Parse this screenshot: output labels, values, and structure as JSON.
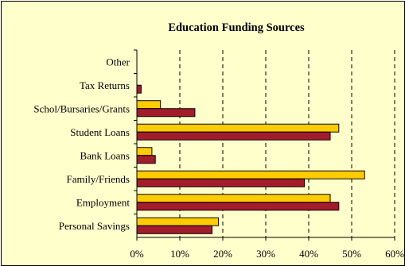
{
  "chart_data": {
    "type": "bar",
    "orientation": "horizontal",
    "title": "Education Funding Sources",
    "categories": [
      "Other",
      "Tax Returns",
      "Schol/Bursaries/Grants",
      "Student Loans",
      "Bank Loans",
      "Family/Friends",
      "Employment",
      "Personal Savings"
    ],
    "series": [
      {
        "color": "#ffcc00",
        "values": [
          0,
          0,
          5.5,
          47,
          3.5,
          53,
          45,
          19
        ]
      },
      {
        "color": "#a31c2c",
        "values": [
          0,
          1,
          13.5,
          45,
          4.3,
          39,
          47,
          17.5
        ]
      }
    ],
    "xlim": [
      0,
      60
    ],
    "ticks": [
      "0%",
      "10%",
      "20%",
      "30%",
      "40%",
      "50%",
      "60%"
    ],
    "grid": "vertical-dashed",
    "background": "#ffffcc",
    "legend": "none"
  }
}
